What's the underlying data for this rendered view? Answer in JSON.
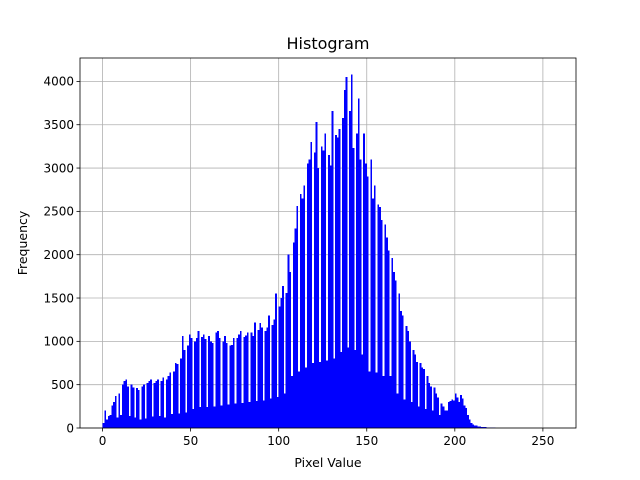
{
  "chart_data": {
    "type": "bar",
    "title": "Histogram",
    "xlabel": "Pixel Value",
    "ylabel": "Frequency",
    "xlim": [
      -12.8,
      268.8
    ],
    "ylim": [
      0,
      4270
    ],
    "xticks": [
      "0",
      "50",
      "100",
      "150",
      "200",
      "250"
    ],
    "yticks": [
      "0",
      "500",
      "1000",
      "1500",
      "2000",
      "2500",
      "3000",
      "3500",
      "4000"
    ],
    "grid": true,
    "bar_color": "#0000ff",
    "bins": 256,
    "series": [
      {
        "values": [
          60,
          200,
          100,
          140,
          150,
          260,
          300,
          370,
          120,
          400,
          150,
          500,
          540,
          560,
          480,
          140,
          500,
          470,
          120,
          460,
          440,
          100,
          480,
          500,
          110,
          520,
          540,
          560,
          130,
          520,
          540,
          560,
          140,
          540,
          580,
          120,
          560,
          600,
          640,
          160,
          650,
          750,
          740,
          170,
          800,
          1060,
          900,
          180,
          950,
          1080,
          1040,
          220,
          1000,
          1040,
          1120,
          240,
          1050,
          1080,
          1030,
          240,
          1060,
          1000,
          980,
          250,
          1100,
          1120,
          1040,
          260,
          1000,
          1060,
          980,
          270,
          950,
          960,
          1040,
          280,
          1040,
          1080,
          1120,
          290,
          1050,
          1070,
          1100,
          300,
          1100,
          1060,
          1220,
          310,
          1130,
          1210,
          1160,
          320,
          1120,
          1160,
          1300,
          340,
          1190,
          1250,
          1550,
          360,
          1400,
          1500,
          1640,
          400,
          1560,
          2000,
          1800,
          600,
          2140,
          2300,
          2560,
          650,
          2700,
          2650,
          2800,
          700,
          3050,
          3100,
          3300,
          750,
          3180,
          3530,
          3000,
          760,
          3250,
          3200,
          3400,
          780,
          3150,
          3030,
          3660,
          800,
          3380,
          3350,
          3450,
          880,
          3580,
          3900,
          4050,
          930,
          3660,
          4080,
          3230,
          900,
          3400,
          3800,
          3100,
          850,
          3400,
          3050,
          2900,
          650,
          3100,
          2650,
          2800,
          640,
          2580,
          2550,
          2400,
          600,
          2350,
          2200,
          2050,
          600,
          1960,
          1800,
          1700,
          400,
          1550,
          1350,
          1300,
          330,
          1180,
          1120,
          1000,
          300,
          900,
          850,
          760,
          250,
          750,
          700,
          680,
          220,
          600,
          520,
          480,
          200,
          470,
          400,
          350,
          150,
          280,
          250,
          200,
          200,
          300,
          310,
          330,
          320,
          400,
          350,
          300,
          380,
          340,
          260,
          230,
          150,
          100,
          60,
          40,
          30,
          30,
          20,
          15,
          10,
          10,
          10,
          8,
          6,
          5,
          4,
          3,
          2,
          2,
          2,
          1,
          1,
          1,
          1,
          1,
          0,
          0,
          0,
          0,
          0,
          0,
          0,
          0,
          0,
          0,
          0,
          0,
          0,
          0,
          0,
          0,
          0,
          0,
          0,
          0,
          0,
          0,
          0,
          0,
          0
        ]
      }
    ]
  }
}
